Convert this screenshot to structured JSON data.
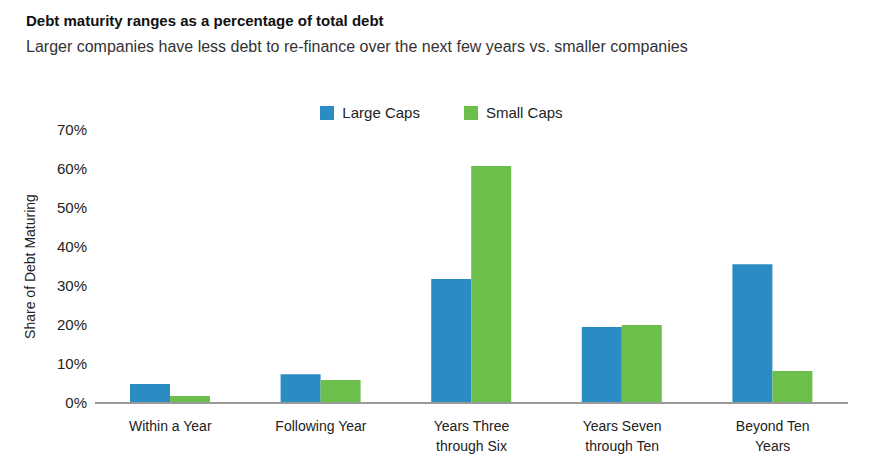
{
  "chart_data": {
    "type": "bar",
    "title": "Debt maturity ranges as a percentage of total debt",
    "subtitle": "Larger companies have less debt to re-finance over the next few years vs. smaller companies",
    "y_label": "Share of Debt Maturing",
    "categories": [
      "Within a Year",
      "Following Year",
      "Years Three through Six",
      "Years Seven through Ten",
      "Beyond Ten Years"
    ],
    "series": [
      {
        "name": "Large Caps",
        "color": "#2b8cc4",
        "values": [
          4.9,
          7.4,
          31.8,
          19.5,
          35.6
        ]
      },
      {
        "name": "Small Caps",
        "color": "#6cbf4b",
        "values": [
          1.8,
          5.9,
          60.8,
          20,
          8.2
        ]
      }
    ],
    "ylim": [
      0,
      70
    ],
    "yticks": [
      {
        "value": 0,
        "label": "0%"
      },
      {
        "value": 10,
        "label": "10%"
      },
      {
        "value": 20,
        "label": "20%"
      },
      {
        "value": 30,
        "label": "30%"
      },
      {
        "value": 40,
        "label": "40%"
      },
      {
        "value": 50,
        "label": "50%"
      },
      {
        "value": 60,
        "label": "60%"
      },
      {
        "value": 70,
        "label": "70%"
      }
    ],
    "grid": false
  }
}
